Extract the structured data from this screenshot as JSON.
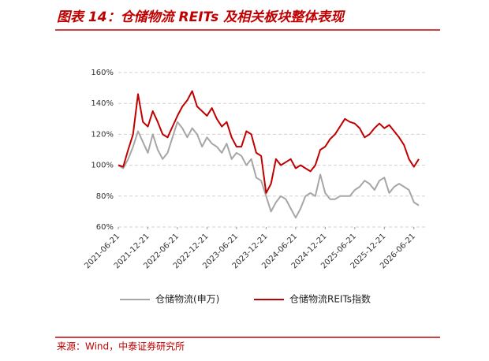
{
  "title": "图表 14：仓储物流 REITs 及相关板块整体表现",
  "source": "来源：Wind，中泰证券研究所",
  "chart_data": {
    "type": "line",
    "x": [
      "2021-06-21",
      "2021-07-21",
      "2021-08-21",
      "2021-09-21",
      "2021-10-21",
      "2021-11-21",
      "2021-12-21",
      "2022-01-21",
      "2022-02-21",
      "2022-03-21",
      "2022-04-21",
      "2022-05-21",
      "2022-06-21",
      "2022-07-21",
      "2022-08-21",
      "2022-09-21",
      "2022-10-21",
      "2022-11-21",
      "2022-12-21",
      "2023-01-21",
      "2023-02-21",
      "2023-03-21",
      "2023-04-21",
      "2023-05-21",
      "2023-06-21",
      "2023-07-21",
      "2023-08-21",
      "2023-09-21",
      "2023-10-21",
      "2023-11-21",
      "2023-12-21",
      "2024-01-21",
      "2024-02-21",
      "2024-03-21",
      "2024-04-21",
      "2024-05-21",
      "2024-06-21",
      "2024-07-21",
      "2024-08-21",
      "2024-09-21",
      "2024-10-21",
      "2024-11-21",
      "2024-12-21",
      "2025-01-21",
      "2025-02-21",
      "2025-03-21",
      "2025-04-21",
      "2025-05-21",
      "2025-06-21",
      "2025-07-21",
      "2025-08-21",
      "2025-09-21",
      "2025-10-21",
      "2025-11-21",
      "2025-12-21",
      "2026-01-21",
      "2026-02-21",
      "2026-03-21",
      "2026-04-21",
      "2026-05-21",
      "2026-06-21",
      "2026-07-21"
    ],
    "xticks": [
      "2021-06-21",
      "2021-12-21",
      "2022-06-21",
      "2022-12-21",
      "2023-06-21",
      "2023-12-21",
      "2024-06-21",
      "2024-12-21",
      "2025-06-21",
      "2025-12-21",
      "2026-06-21"
    ],
    "series": [
      {
        "name": "仓储物流(申万)",
        "color": "#a6a6a6",
        "values": [
          100,
          98,
          104,
          112,
          122,
          115,
          108,
          120,
          110,
          104,
          108,
          118,
          128,
          124,
          118,
          124,
          120,
          112,
          118,
          114,
          112,
          108,
          114,
          104,
          108,
          106,
          100,
          104,
          92,
          90,
          80,
          70,
          76,
          80,
          78,
          72,
          66,
          72,
          80,
          82,
          80,
          94,
          82,
          78,
          78,
          80,
          80,
          80,
          84,
          86,
          90,
          88,
          84,
          90,
          92,
          82,
          86,
          88,
          86,
          84,
          76,
          74
        ]
      },
      {
        "name": "仓储物流REITs指数",
        "color": "#c00000",
        "values": [
          100,
          99,
          110,
          120,
          146,
          128,
          125,
          135,
          128,
          120,
          118,
          125,
          132,
          138,
          142,
          148,
          138,
          135,
          132,
          137,
          130,
          125,
          128,
          118,
          112,
          112,
          122,
          120,
          108,
          106,
          82,
          88,
          104,
          100,
          102,
          104,
          98,
          100,
          98,
          96,
          100,
          110,
          112,
          117,
          120,
          125,
          130,
          128,
          127,
          124,
          118,
          120,
          124,
          127,
          124,
          126,
          122,
          118,
          113,
          104,
          99,
          104
        ]
      }
    ],
    "ylim": [
      60,
      160
    ],
    "yticks": [
      {
        "value": 60,
        "label": "60%"
      },
      {
        "value": 80,
        "label": "80%"
      },
      {
        "value": 100,
        "label": "100%"
      },
      {
        "value": 120,
        "label": "120%"
      },
      {
        "value": 140,
        "label": "140%"
      },
      {
        "value": 160,
        "label": "160%"
      }
    ],
    "grid": true
  }
}
